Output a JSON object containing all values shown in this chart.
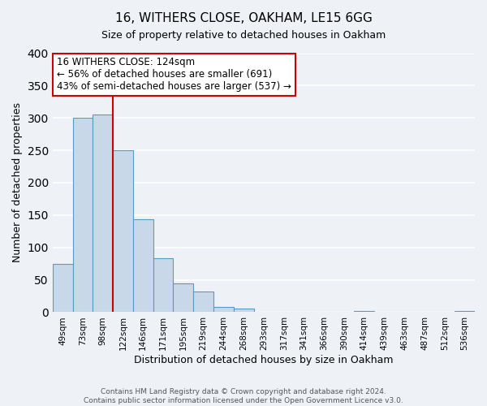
{
  "title": "16, WITHERS CLOSE, OAKHAM, LE15 6GG",
  "subtitle": "Size of property relative to detached houses in Oakham",
  "xlabel": "Distribution of detached houses by size in Oakham",
  "ylabel": "Number of detached properties",
  "bar_labels": [
    "49sqm",
    "73sqm",
    "98sqm",
    "122sqm",
    "146sqm",
    "171sqm",
    "195sqm",
    "219sqm",
    "244sqm",
    "268sqm",
    "293sqm",
    "317sqm",
    "341sqm",
    "366sqm",
    "390sqm",
    "414sqm",
    "439sqm",
    "463sqm",
    "487sqm",
    "512sqm",
    "536sqm"
  ],
  "bar_heights": [
    74,
    300,
    305,
    250,
    143,
    83,
    44,
    32,
    8,
    6,
    0,
    0,
    0,
    0,
    0,
    2,
    0,
    0,
    0,
    0,
    2
  ],
  "bar_color": "#c8d8e8",
  "bar_edge_color": "#5a9abf",
  "vline_x_index": 2.5,
  "vline_color": "#cc0000",
  "ylim": [
    0,
    400
  ],
  "yticks": [
    0,
    50,
    100,
    150,
    200,
    250,
    300,
    350,
    400
  ],
  "annotation_title": "16 WITHERS CLOSE: 124sqm",
  "annotation_line1": "← 56% of detached houses are smaller (691)",
  "annotation_line2": "43% of semi-detached houses are larger (537) →",
  "annotation_box_color": "#ffffff",
  "annotation_box_edge_color": "#cc0000",
  "footer_line1": "Contains HM Land Registry data © Crown copyright and database right 2024.",
  "footer_line2": "Contains public sector information licensed under the Open Government Licence v3.0.",
  "bg_color": "#eef2f7",
  "grid_color": "#ffffff",
  "title_fontsize": 11,
  "subtitle_fontsize": 9
}
